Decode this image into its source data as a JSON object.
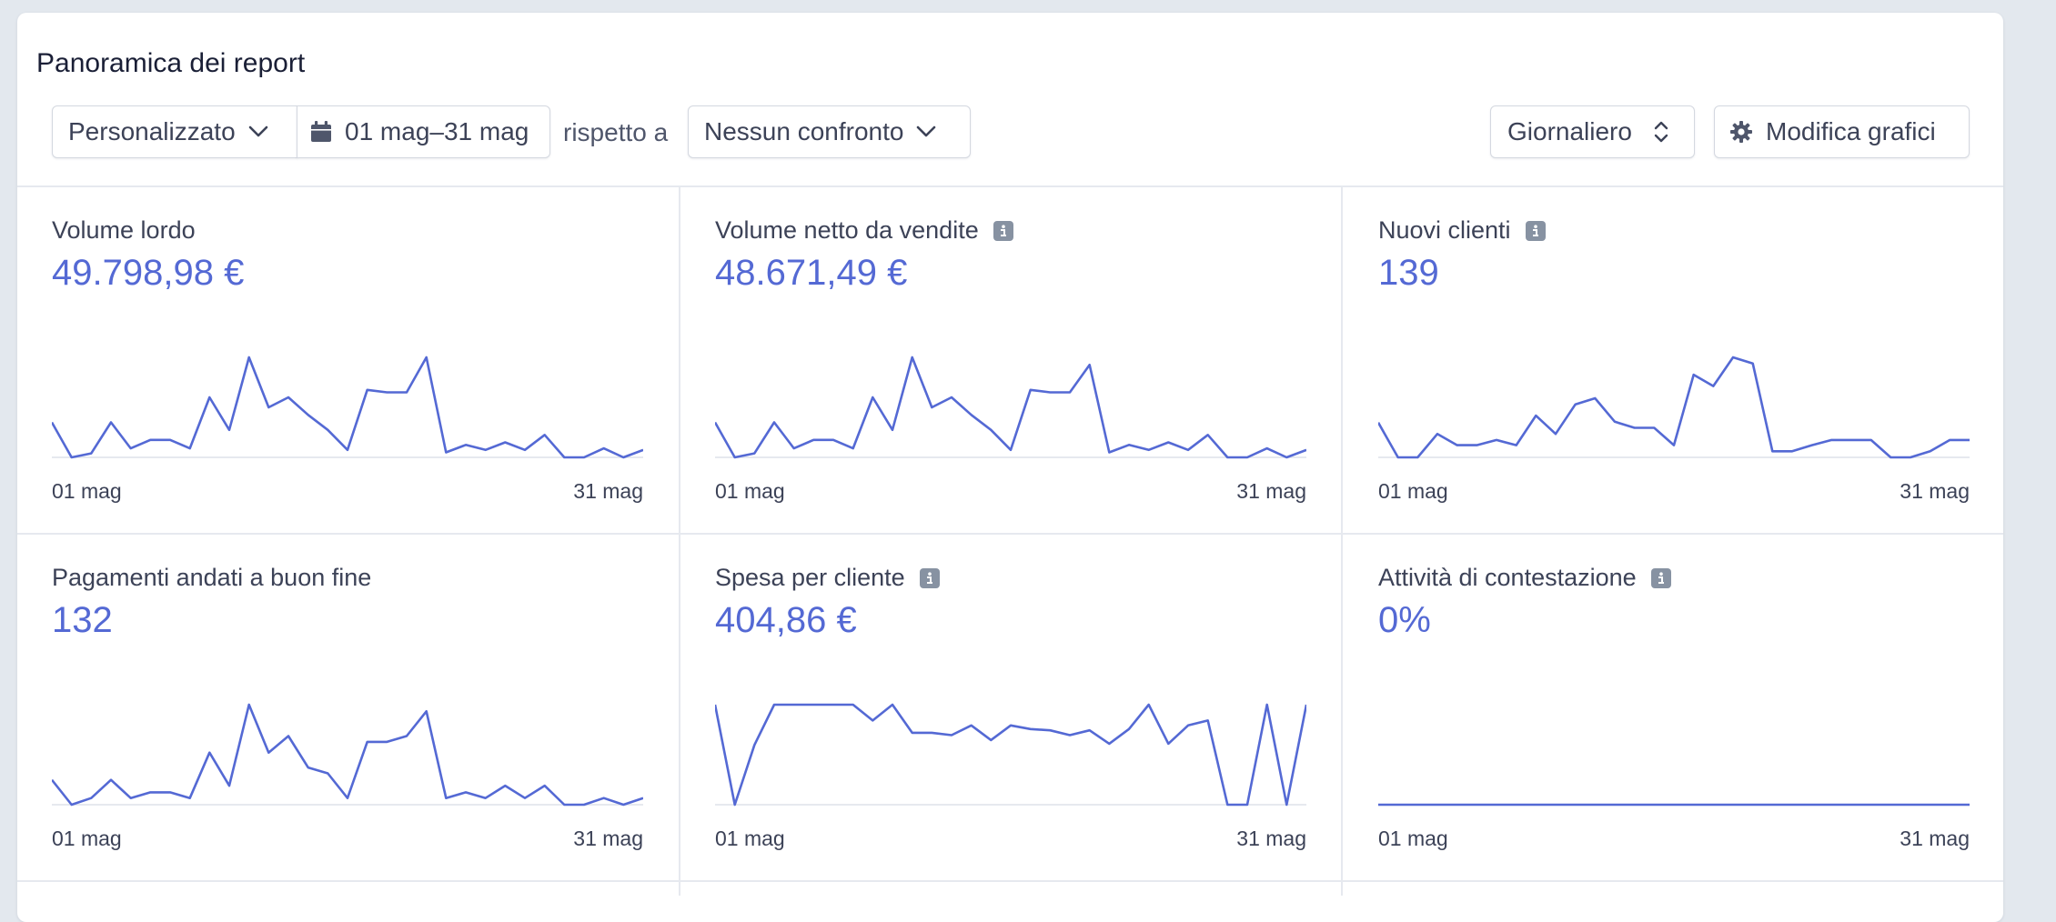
{
  "report": {
    "title": "Panoramica dei report",
    "period_select": "Personalizzato",
    "date_range": "01 mag–31 mag",
    "compare_label": "rispetto a",
    "compare_select": "Nessun confronto",
    "frequency_select": "Giornaliero",
    "edit_charts_label": "Modifica grafici"
  },
  "colors": {
    "accent": "#5469d4",
    "text": "#3c4257",
    "border": "#e6e9ef"
  },
  "icons": {
    "period": "chevron-down-icon",
    "date": "calendar-icon",
    "compare": "chevron-down-icon",
    "frequency": "up-down-chevron-icon",
    "edit": "gear-icon",
    "info": "info-icon"
  },
  "tiles": [
    {
      "title": "Volume lordo",
      "value": "49.798,98 €",
      "info": false,
      "x_start": "01 mag",
      "x_end": "31 mag",
      "series": [
        7,
        0,
        0.8,
        7,
        1.8,
        3.5,
        3.5,
        1.8,
        12,
        5.5,
        20,
        10,
        12,
        8.5,
        5.5,
        1.5,
        13.5,
        13,
        13,
        20,
        1,
        2.5,
        1.5,
        3,
        1.5,
        4.5,
        0,
        0,
        1.8,
        0,
        1.5
      ]
    },
    {
      "title": "Volume netto da vendite",
      "value": "48.671,49 €",
      "info": true,
      "x_start": "01 mag",
      "x_end": "31 mag",
      "series": [
        7,
        0,
        0.8,
        7,
        1.8,
        3.5,
        3.5,
        1.8,
        12,
        5.5,
        20,
        10,
        12,
        8.5,
        5.5,
        1.5,
        13.5,
        13,
        13,
        18.5,
        1,
        2.5,
        1.5,
        3,
        1.5,
        4.5,
        0,
        0,
        1.8,
        0,
        1.5
      ]
    },
    {
      "title": "Nuovi clienti",
      "value": "139",
      "info": true,
      "x_start": "01 mag",
      "x_end": "31 mag",
      "series": [
        4,
        0,
        0,
        2.7,
        1.4,
        1.4,
        2,
        1.4,
        4.8,
        2.7,
        6.1,
        6.8,
        4.1,
        3.4,
        3.4,
        1.4,
        9.5,
        8.2,
        11.5,
        10.8,
        0.7,
        0.7,
        1.4,
        2,
        2,
        2,
        0,
        0,
        0.7,
        2,
        2
      ]
    },
    {
      "title": "Pagamenti andati a buon fine",
      "value": "132",
      "info": false,
      "x_start": "01 mag",
      "x_end": "31 mag",
      "series": [
        3,
        0,
        0.8,
        3,
        0.8,
        1.5,
        1.5,
        0.8,
        6.3,
        2.3,
        12.1,
        6.3,
        8.3,
        4.5,
        3.8,
        0.8,
        7.6,
        7.6,
        8.3,
        11.3,
        0.8,
        1.5,
        0.8,
        2.3,
        0.8,
        2.3,
        0,
        0,
        0.8,
        0,
        0.8
      ]
    },
    {
      "title": "Spesa per cliente",
      "value": "404,86 €",
      "info": true,
      "x_start": "01 mag",
      "x_end": "31 mag",
      "series": [
        820,
        0,
        490,
        820,
        820,
        820,
        820,
        820,
        690,
        820,
        590,
        590,
        570,
        650,
        530,
        650,
        620,
        610,
        570,
        610,
        500,
        620,
        820,
        500,
        650,
        690,
        0,
        0,
        820,
        0,
        820
      ]
    },
    {
      "title": "Attività di contestazione",
      "value": "0%",
      "info": true,
      "x_start": "01 mag",
      "x_end": "31 mag",
      "series": [
        0,
        0,
        0,
        0,
        0,
        0,
        0,
        0,
        0,
        0,
        0,
        0,
        0,
        0,
        0,
        0,
        0,
        0,
        0,
        0,
        0,
        0,
        0,
        0,
        0,
        0,
        0,
        0,
        0,
        0,
        0
      ]
    }
  ]
}
